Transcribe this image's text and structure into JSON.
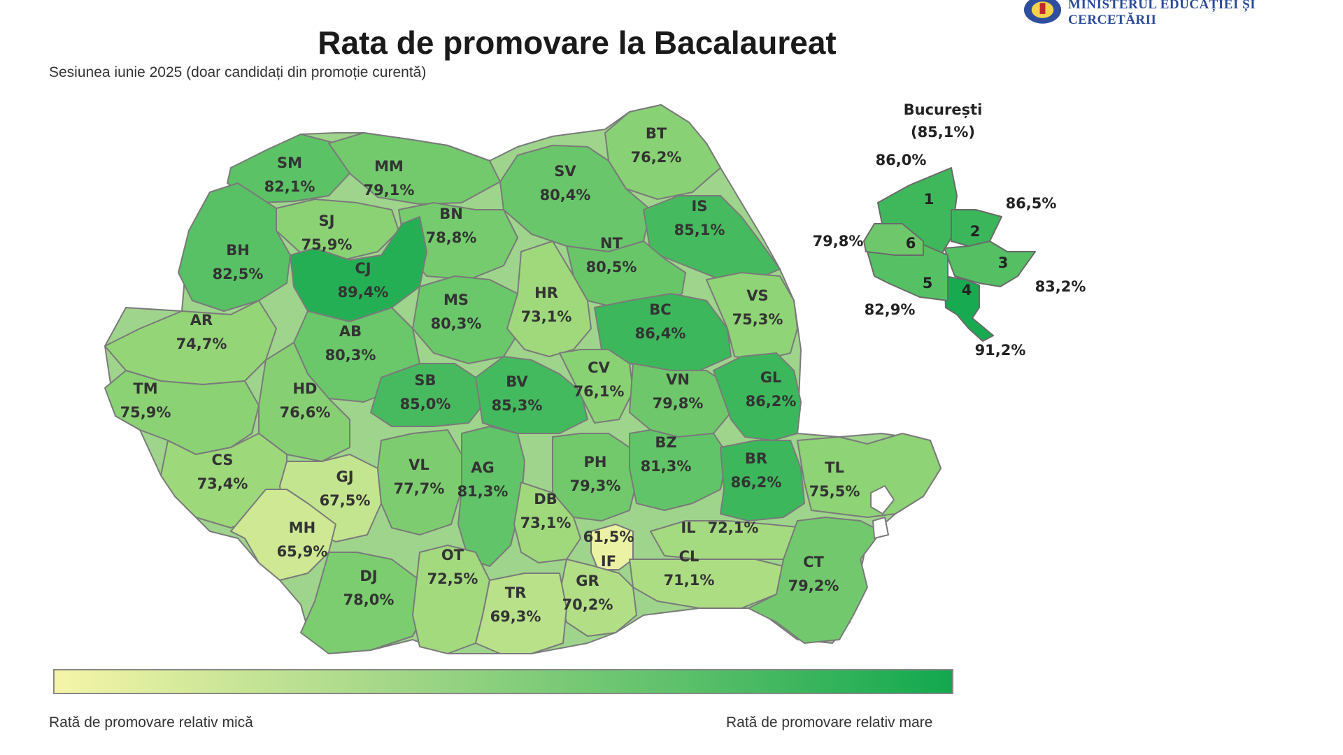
{
  "header": {
    "title": "Rata de promovare la Bacalaureat",
    "subtitle": "Sesiunea iunie 2025 (doar candidați din promoție curentă)",
    "ministry": "MINISTERUL EDUCAȚIEI ȘI CERCETĂRII"
  },
  "map_data": {
    "colors": {
      "low": "#f5f5a8",
      "high": "#12a84e",
      "border": "#777777"
    },
    "counties": [
      {
        "code": "SM",
        "value": "82,1%"
      },
      {
        "code": "MM",
        "value": "79,1%"
      },
      {
        "code": "BT",
        "value": "76,2%"
      },
      {
        "code": "SV",
        "value": "80,4%"
      },
      {
        "code": "SJ",
        "value": "75,9%"
      },
      {
        "code": "BN",
        "value": "78,8%"
      },
      {
        "code": "IS",
        "value": "85,1%"
      },
      {
        "code": "BH",
        "value": "82,5%"
      },
      {
        "code": "CJ",
        "value": "89,4%"
      },
      {
        "code": "NT",
        "value": "80,5%"
      },
      {
        "code": "MS",
        "value": "80,3%"
      },
      {
        "code": "HR",
        "value": "73,1%"
      },
      {
        "code": "BC",
        "value": "86,4%"
      },
      {
        "code": "VS",
        "value": "75,3%"
      },
      {
        "code": "AR",
        "value": "74,7%"
      },
      {
        "code": "AB",
        "value": "80,3%"
      },
      {
        "code": "TM",
        "value": "75,9%"
      },
      {
        "code": "HD",
        "value": "76,6%"
      },
      {
        "code": "SB",
        "value": "85,0%"
      },
      {
        "code": "BV",
        "value": "85,3%"
      },
      {
        "code": "CV",
        "value": "76,1%"
      },
      {
        "code": "VN",
        "value": "79,8%"
      },
      {
        "code": "GL",
        "value": "86,2%"
      },
      {
        "code": "CS",
        "value": "73,4%"
      },
      {
        "code": "GJ",
        "value": "67,5%"
      },
      {
        "code": "VL",
        "value": "77,7%"
      },
      {
        "code": "AG",
        "value": "81,3%"
      },
      {
        "code": "PH",
        "value": "79,3%"
      },
      {
        "code": "BZ",
        "value": "81,3%"
      },
      {
        "code": "BR",
        "value": "86,2%"
      },
      {
        "code": "TL",
        "value": "75,5%"
      },
      {
        "code": "MH",
        "value": "65,9%"
      },
      {
        "code": "DB",
        "value": "73,1%"
      },
      {
        "code": "IL",
        "value": "72,1%"
      },
      {
        "code": "IF",
        "value": "61,5%"
      },
      {
        "code": "DJ",
        "value": "78,0%"
      },
      {
        "code": "OT",
        "value": "72,5%"
      },
      {
        "code": "CL",
        "value": "71,1%"
      },
      {
        "code": "GR",
        "value": "70,2%"
      },
      {
        "code": "TR",
        "value": "69,3%"
      },
      {
        "code": "CT",
        "value": "79,2%"
      }
    ],
    "bucharest": {
      "name": "București",
      "total": "(85,1%)",
      "sectors": [
        {
          "sector": "1",
          "value": "86,0%"
        },
        {
          "sector": "2",
          "value": "86,5%"
        },
        {
          "sector": "3",
          "value": "83,2%"
        },
        {
          "sector": "4",
          "value": "91,2%"
        },
        {
          "sector": "5",
          "value": "82,9%"
        },
        {
          "sector": "6",
          "value": "79,8%"
        }
      ]
    }
  },
  "legend": {
    "low_label": "Rată de promovare relativ mică",
    "high_label": "Rată de promovare relativ mare"
  }
}
